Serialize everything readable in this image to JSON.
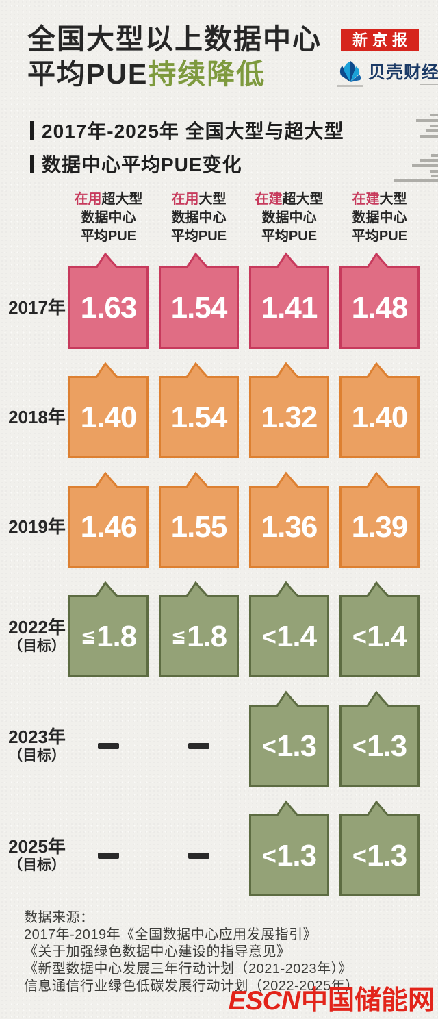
{
  "page": {
    "background": "#f1f0ec"
  },
  "header": {
    "title_line1": "全国大型以上数据中心",
    "title_line2_black": "平均PUE",
    "title_line2_green": "持续降低",
    "accent_green": "#7e9a3e"
  },
  "brand": {
    "newspaper_badge": "新京报",
    "badge_bg": "#d6251d",
    "finance_outlet": "贝壳财经",
    "outlet_color": "#1b3a66"
  },
  "section": {
    "subtitle_line1": "2017年-2025年 全国大型与超大型",
    "subtitle_line2": "数据中心平均PUE变化"
  },
  "chart_data": {
    "type": "table",
    "title": "2017年-2025年 全国大型与超大型数据中心平均PUE变化",
    "unit": "平均PUE",
    "columns": [
      {
        "accent": "在用",
        "scale": "超大型"
      },
      {
        "accent": "在用",
        "scale": "大型"
      },
      {
        "accent": "在建",
        "scale": "超大型"
      },
      {
        "accent": "在建",
        "scale": "大型"
      }
    ],
    "header_line2": "数据中心",
    "header_line3": "平均PUE",
    "rows": [
      {
        "label": "2017年",
        "sublabel": "",
        "palette": "rose",
        "cells": [
          {
            "v": "1.63"
          },
          {
            "v": "1.54"
          },
          {
            "v": "1.41"
          },
          {
            "v": "1.48"
          }
        ]
      },
      {
        "label": "2018年",
        "sublabel": "",
        "palette": "orange",
        "cells": [
          {
            "v": "1.40"
          },
          {
            "v": "1.54"
          },
          {
            "v": "1.32"
          },
          {
            "v": "1.40"
          }
        ]
      },
      {
        "label": "2019年",
        "sublabel": "",
        "palette": "orange",
        "cells": [
          {
            "v": "1.46"
          },
          {
            "v": "1.55"
          },
          {
            "v": "1.36"
          },
          {
            "v": "1.39"
          }
        ]
      },
      {
        "label": "2022年",
        "sublabel": "（目标）",
        "palette": "green",
        "cells": [
          {
            "v": "≦1.8"
          },
          {
            "v": "≦1.8"
          },
          {
            "v": "<1.4"
          },
          {
            "v": "<1.4"
          }
        ]
      },
      {
        "label": "2023年",
        "sublabel": "（目标）",
        "palette": "green",
        "cells": [
          {
            "v": "—",
            "dash": true
          },
          {
            "v": "—",
            "dash": true
          },
          {
            "v": "<1.3"
          },
          {
            "v": "<1.3"
          }
        ]
      },
      {
        "label": "2025年",
        "sublabel": "（目标）",
        "palette": "green",
        "cells": [
          {
            "v": "—",
            "dash": true
          },
          {
            "v": "—",
            "dash": true
          },
          {
            "v": "<1.3"
          },
          {
            "v": "<1.3"
          }
        ]
      }
    ],
    "palettes": {
      "rose": {
        "fill": "#e06d84",
        "stroke": "#c73a5c"
      },
      "orange": {
        "fill": "#eba061",
        "stroke": "#dd8031"
      },
      "green": {
        "fill": "#94a277",
        "stroke": "#5d6c42"
      }
    },
    "accent_red": "#c73a5c"
  },
  "footer": {
    "source_label": "数据来源：",
    "sources": [
      "2017年-2019年《全国数据中心应用发展指引》",
      "《关于加强绿色数据中心建设的指导意见》",
      "《新型数据中心发展三年行动计划（2021-2023年）》",
      "信息通信行业绿色低碳发展行动计划（2022-2025年）"
    ],
    "watermark_latin": "ESCN",
    "watermark_cjk": "中国储能网",
    "watermark_color": "#e2241a"
  }
}
